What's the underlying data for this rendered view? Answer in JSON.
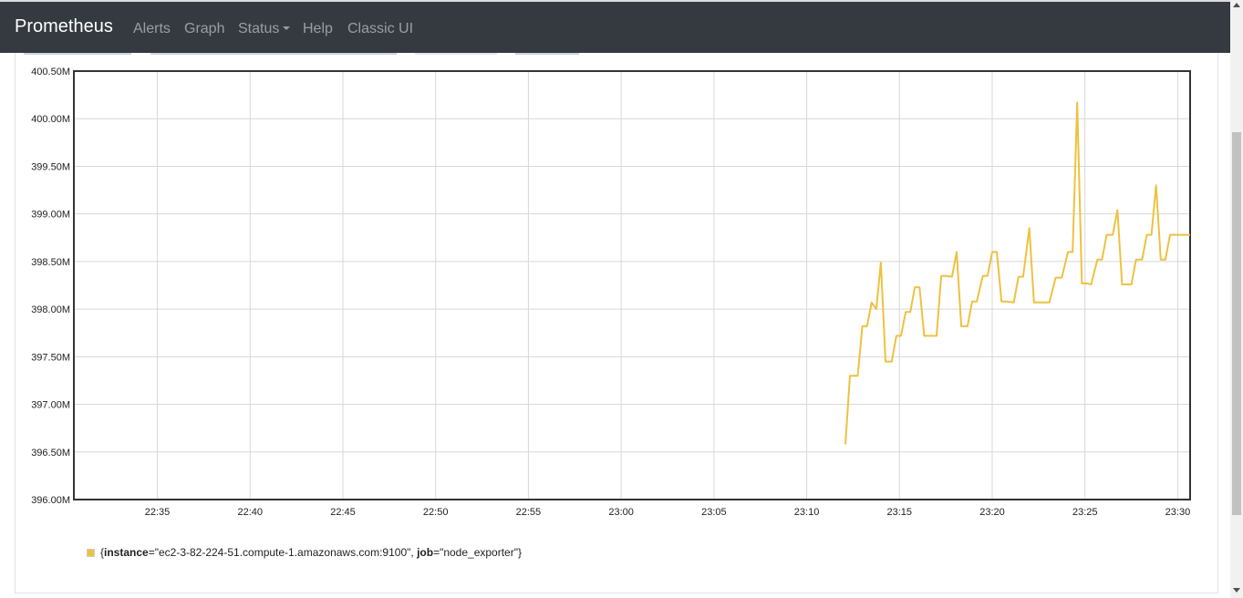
{
  "navbar": {
    "brand": "Prometheus",
    "items": [
      "Alerts",
      "Graph",
      "Status",
      "Help",
      "Classic UI"
    ]
  },
  "chart_data": {
    "type": "line",
    "title": "",
    "xlabel": "",
    "ylabel": "",
    "y_ticks": [
      "396.00M",
      "396.50M",
      "397.00M",
      "397.50M",
      "398.00M",
      "398.50M",
      "399.00M",
      "399.50M",
      "400.00M",
      "400.50M"
    ],
    "x_ticks": [
      "22:35",
      "22:40",
      "22:45",
      "22:50",
      "22:55",
      "23:00",
      "23:05",
      "23:10",
      "23:15",
      "23:20",
      "23:25",
      "23:30"
    ],
    "ylim": [
      396.0,
      400.5
    ],
    "y_unit": "M",
    "xlim": [
      "22:30:30",
      "23:30:40"
    ],
    "grid": true,
    "series": [
      {
        "name": "{instance=\"ec2-3-82-224-51.compute-1.amazonaws.com:9100\", job=\"node_exporter\"}",
        "color": "#edc240",
        "x": [
          "23:12:05",
          "23:12:20",
          "23:12:45",
          "23:13:00",
          "23:13:15",
          "23:13:30",
          "23:13:45",
          "23:14:00",
          "23:14:15",
          "23:14:35",
          "23:14:50",
          "23:15:05",
          "23:15:20",
          "23:15:35",
          "23:15:50",
          "23:16:05",
          "23:16:20",
          "23:16:40",
          "23:17:00",
          "23:17:15",
          "23:17:30",
          "23:17:50",
          "23:18:05",
          "23:18:20",
          "23:18:40",
          "23:18:55",
          "23:19:10",
          "23:19:30",
          "23:19:45",
          "23:20:00",
          "23:20:15",
          "23:20:30",
          "23:20:45",
          "23:21:10",
          "23:21:25",
          "23:21:40",
          "23:22:00",
          "23:22:15",
          "23:22:30",
          "23:22:50",
          "23:23:05",
          "23:23:25",
          "23:23:45",
          "23:24:05",
          "23:24:20",
          "23:24:35",
          "23:24:50",
          "23:25:05",
          "23:25:20",
          "23:25:40",
          "23:25:55",
          "23:26:10",
          "23:26:30",
          "23:26:45",
          "23:27:00",
          "23:27:15",
          "23:27:30",
          "23:27:45",
          "23:28:05",
          "23:28:20",
          "23:28:35",
          "23:28:50",
          "23:29:05",
          "23:29:20",
          "23:29:35",
          "23:29:50",
          "23:30:05",
          "23:30:40"
        ],
        "y": [
          396.58,
          397.3,
          397.3,
          397.82,
          397.82,
          398.07,
          398.0,
          398.49,
          397.45,
          397.45,
          397.72,
          397.72,
          397.97,
          397.97,
          398.23,
          398.23,
          397.72,
          397.72,
          397.72,
          398.35,
          398.35,
          398.34,
          398.6,
          397.82,
          397.82,
          398.08,
          398.08,
          398.35,
          398.35,
          398.6,
          398.6,
          398.08,
          398.08,
          398.07,
          398.34,
          398.34,
          398.85,
          398.07,
          398.07,
          398.07,
          398.07,
          398.33,
          398.33,
          398.6,
          398.6,
          400.17,
          398.27,
          398.27,
          398.26,
          398.52,
          398.52,
          398.78,
          398.78,
          399.04,
          398.26,
          398.26,
          398.26,
          398.52,
          398.52,
          398.78,
          398.78,
          399.3,
          398.52,
          398.52,
          398.78,
          398.78,
          398.78,
          398.78
        ]
      }
    ]
  },
  "legend": {
    "open_brace": "{",
    "instance_key": "instance",
    "instance_value": "=\"ec2-3-82-224-51.compute-1.amazonaws.com:9100\", ",
    "job_key": "job",
    "job_value": "=\"node_exporter\"}"
  },
  "colors": {
    "navbar_bg": "#343a40",
    "series": "#edc240",
    "grid": "#d8d8d8",
    "axis": "#333333"
  }
}
